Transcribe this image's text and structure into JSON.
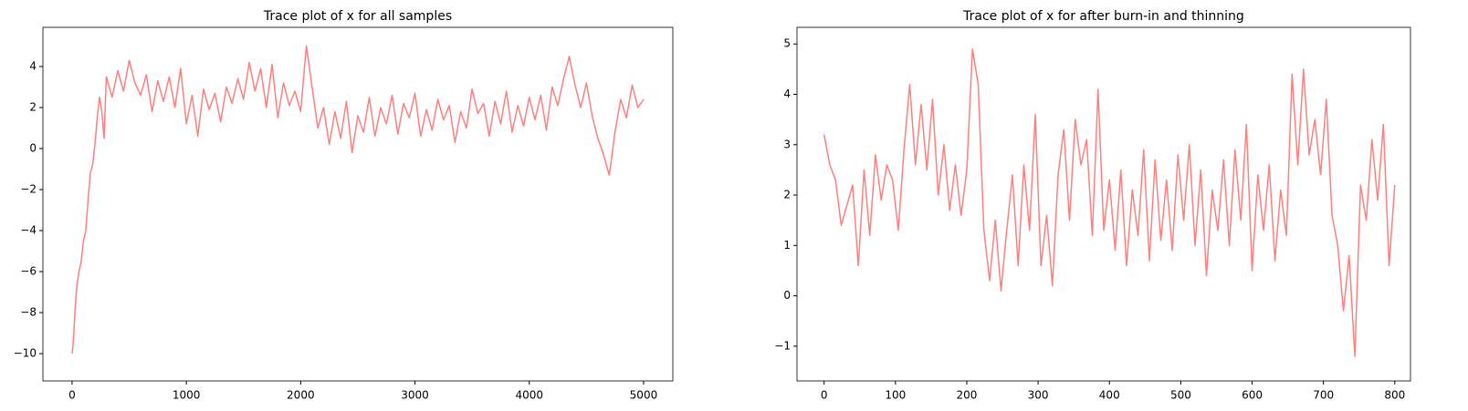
{
  "chart_data": [
    {
      "type": "line",
      "title": "Trace plot of x for all samples",
      "color": "#ff7f7f",
      "x": [
        0,
        10,
        25,
        40,
        60,
        80,
        100,
        120,
        140,
        160,
        180,
        200,
        220,
        240,
        260,
        280,
        300,
        350,
        400,
        450,
        500,
        550,
        600,
        650,
        700,
        750,
        800,
        850,
        900,
        950,
        1000,
        1050,
        1100,
        1150,
        1200,
        1250,
        1300,
        1350,
        1400,
        1450,
        1500,
        1550,
        1600,
        1650,
        1700,
        1750,
        1800,
        1850,
        1900,
        1950,
        2000,
        2050,
        2100,
        2150,
        2200,
        2250,
        2300,
        2350,
        2400,
        2450,
        2500,
        2550,
        2600,
        2650,
        2700,
        2750,
        2800,
        2850,
        2900,
        2950,
        3000,
        3050,
        3100,
        3150,
        3200,
        3250,
        3300,
        3350,
        3400,
        3450,
        3500,
        3550,
        3600,
        3650,
        3700,
        3750,
        3800,
        3850,
        3900,
        3950,
        4000,
        4050,
        4100,
        4150,
        4200,
        4250,
        4300,
        4350,
        4400,
        4450,
        4500,
        4550,
        4600,
        4650,
        4700,
        4750,
        4800,
        4850,
        4900,
        4950,
        5000
      ],
      "values": [
        -10,
        -9.5,
        -8,
        -6.8,
        -6,
        -5.5,
        -4.5,
        -4,
        -2.5,
        -1.2,
        -0.8,
        0.2,
        1.5,
        2.5,
        1.8,
        0.5,
        3.5,
        2.5,
        3.8,
        2.8,
        4.3,
        3.2,
        2.6,
        3.6,
        1.8,
        3.3,
        2.3,
        3.5,
        2.0,
        3.9,
        1.2,
        2.6,
        0.6,
        2.9,
        1.9,
        2.7,
        1.3,
        3.0,
        2.2,
        3.4,
        2.4,
        4.2,
        2.8,
        3.9,
        2.0,
        4.1,
        1.5,
        3.2,
        2.1,
        2.8,
        1.8,
        5.0,
        3.0,
        1.0,
        2.0,
        0.2,
        1.8,
        0.5,
        2.3,
        -0.2,
        1.6,
        0.8,
        2.5,
        0.6,
        2.0,
        1.2,
        2.6,
        0.7,
        2.2,
        1.5,
        2.7,
        0.6,
        1.9,
        0.9,
        2.4,
        1.4,
        2.1,
        0.3,
        1.8,
        1.0,
        2.9,
        1.7,
        2.2,
        0.6,
        2.3,
        1.2,
        2.8,
        0.8,
        2.1,
        1.1,
        2.5,
        1.4,
        2.6,
        0.9,
        3.0,
        2.1,
        3.4,
        4.5,
        3.1,
        2.0,
        3.2,
        1.6,
        0.5,
        -0.3,
        -1.3,
        0.8,
        2.4,
        1.5,
        3.1,
        2.0,
        2.4
      ],
      "xlim": [
        -255,
        5256
      ],
      "xticks": [
        0,
        1000,
        2000,
        3000,
        4000,
        5000
      ],
      "ylim": [
        -11.33,
        5.91
      ],
      "yticks": [
        {
          "value": -10,
          "label": "−10"
        },
        {
          "value": -8,
          "label": "−8"
        },
        {
          "value": -6,
          "label": "−6"
        },
        {
          "value": -4,
          "label": "−4"
        },
        {
          "value": -2,
          "label": "−2"
        },
        0,
        2,
        4
      ]
    },
    {
      "type": "line",
      "title": "Trace plot of x for after burn-in and thinning",
      "color": "#ff7f7f",
      "x": [
        0,
        8,
        16,
        24,
        32,
        40,
        48,
        56,
        64,
        72,
        80,
        88,
        96,
        104,
        112,
        120,
        128,
        136,
        144,
        152,
        160,
        168,
        176,
        184,
        192,
        200,
        208,
        216,
        224,
        232,
        240,
        248,
        256,
        264,
        272,
        280,
        288,
        296,
        304,
        312,
        320,
        328,
        336,
        344,
        352,
        360,
        368,
        376,
        384,
        392,
        400,
        408,
        416,
        424,
        432,
        440,
        448,
        456,
        464,
        472,
        480,
        488,
        496,
        504,
        512,
        520,
        528,
        536,
        544,
        552,
        560,
        568,
        576,
        584,
        592,
        600,
        608,
        616,
        624,
        632,
        640,
        648,
        656,
        664,
        672,
        680,
        688,
        696,
        704,
        712,
        720,
        728,
        736,
        744,
        752,
        760,
        768,
        776,
        784,
        792,
        800
      ],
      "values": [
        3.2,
        2.6,
        2.3,
        1.4,
        1.8,
        2.2,
        0.6,
        2.5,
        1.2,
        2.8,
        1.9,
        2.6,
        2.3,
        1.3,
        2.9,
        4.2,
        2.6,
        3.8,
        2.5,
        3.9,
        2.0,
        3.0,
        1.7,
        2.6,
        1.6,
        2.5,
        4.9,
        4.2,
        1.3,
        0.3,
        1.5,
        0.1,
        1.3,
        2.4,
        0.6,
        2.6,
        1.3,
        3.6,
        0.6,
        1.6,
        0.2,
        2.4,
        3.3,
        1.5,
        3.5,
        2.6,
        3.1,
        1.2,
        4.1,
        1.3,
        2.3,
        0.9,
        2.5,
        0.6,
        2.1,
        1.2,
        2.9,
        0.7,
        2.7,
        1.1,
        2.3,
        0.9,
        2.8,
        1.5,
        3.0,
        1.0,
        2.5,
        0.4,
        2.1,
        1.3,
        2.7,
        1.0,
        2.9,
        1.5,
        3.4,
        0.5,
        2.4,
        1.3,
        2.6,
        0.7,
        2.1,
        1.2,
        4.4,
        2.6,
        4.5,
        2.8,
        3.5,
        2.4,
        3.9,
        1.6,
        1.0,
        -0.3,
        0.8,
        -1.2,
        2.2,
        1.5,
        3.1,
        1.9,
        3.4,
        0.6,
        2.2
      ],
      "xlim": [
        -38,
        822
      ],
      "xticks": [
        0,
        100,
        200,
        300,
        400,
        500,
        600,
        700,
        800
      ],
      "ylim": [
        -1.69,
        5.33
      ],
      "yticks": [
        {
          "value": -1,
          "label": "−1"
        },
        0,
        1,
        2,
        3,
        4,
        5
      ]
    }
  ]
}
